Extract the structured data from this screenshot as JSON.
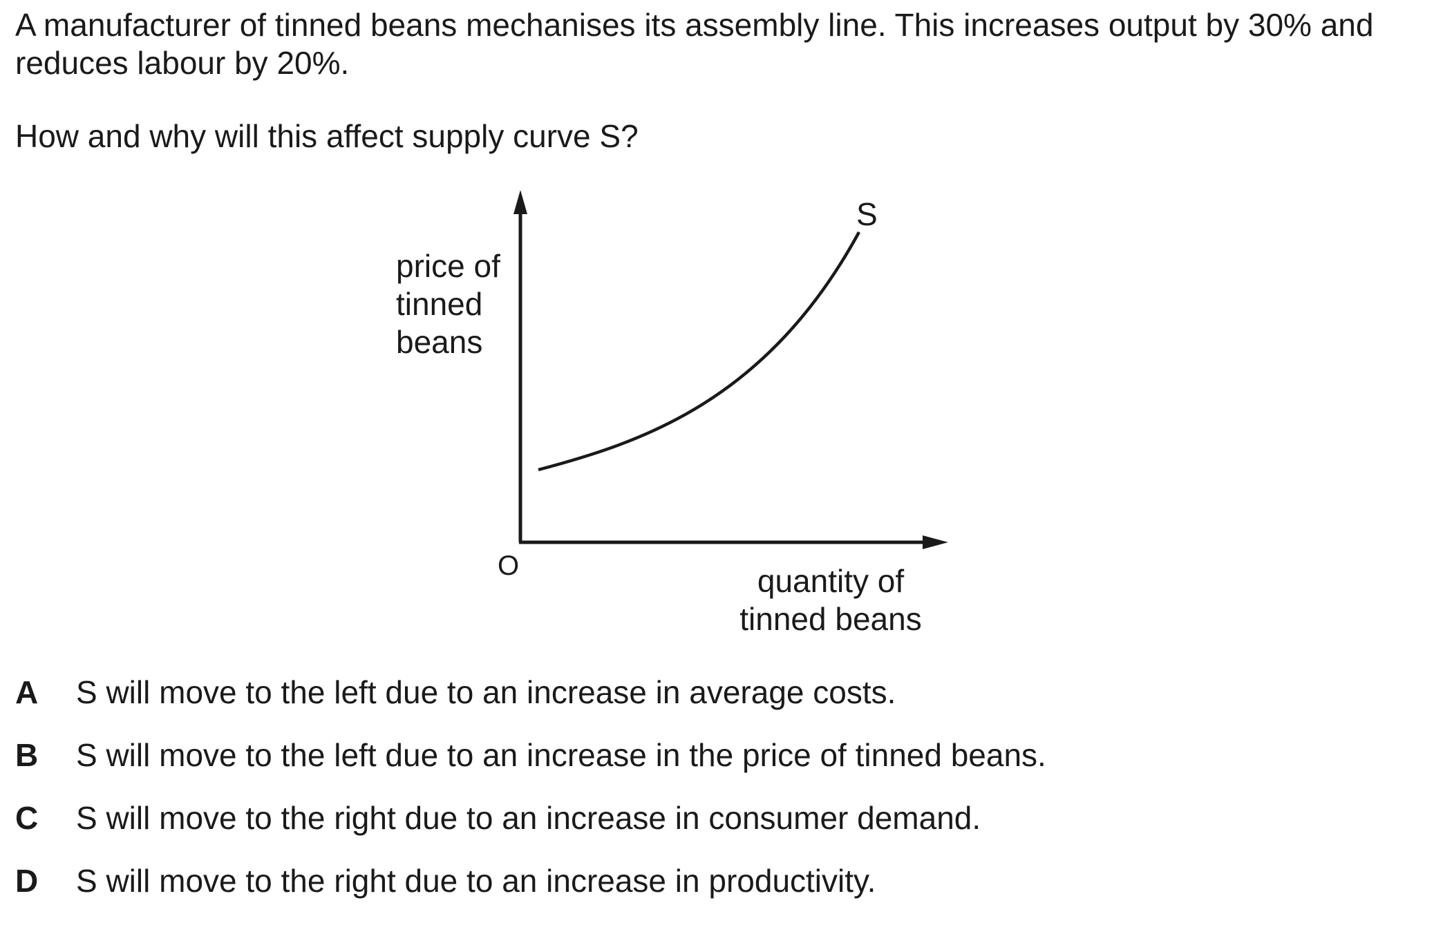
{
  "question": {
    "stem": "A manufacturer of tinned beans mechanises its assembly line. This increases output by 30% and reduces labour by 20%.",
    "prompt": "How and why will this affect supply curve S?"
  },
  "diagram": {
    "y_axis_label": "price of\ntinned\nbeans",
    "x_axis_label": "quantity of\ntinned beans",
    "origin_label": "O",
    "curve_label": "S"
  },
  "options": [
    {
      "letter": "A",
      "text": "S will move to the left due to an increase in average costs."
    },
    {
      "letter": "B",
      "text": "S will move to the left due to an increase in the price of tinned beans."
    },
    {
      "letter": "C",
      "text": "S will move to the right due to an increase in consumer demand."
    },
    {
      "letter": "D",
      "text": "S will move to the right due to an increase in productivity."
    }
  ]
}
